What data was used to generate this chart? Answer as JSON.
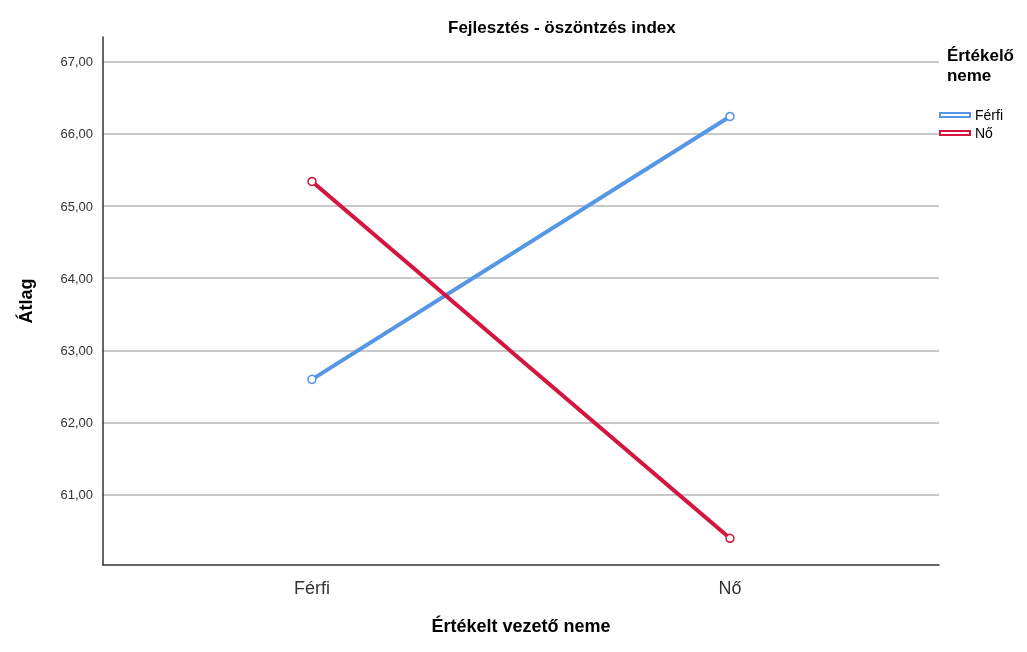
{
  "chart_data": {
    "type": "line",
    "title": "Fejlesztés - öszöntzés index",
    "xlabel": "Értékelt vezető neme",
    "ylabel": "Átlag",
    "legend_title": "Értékelő neme",
    "categories": [
      "Férfi",
      "Nő"
    ],
    "series": [
      {
        "name": "Férfi",
        "color": "#5596e6",
        "values": [
          62.6,
          66.24
        ]
      },
      {
        "name": "Nő",
        "color": "#d3153f",
        "values": [
          65.34,
          60.4
        ]
      }
    ],
    "ylim": [
      60.03,
      67.34
    ],
    "yticks": [
      {
        "value": 61,
        "label": "61,00"
      },
      {
        "value": 62,
        "label": "62,00"
      },
      {
        "value": 63,
        "label": "63,00"
      },
      {
        "value": 64,
        "label": "64,00"
      },
      {
        "value": 65,
        "label": "65,00"
      },
      {
        "value": 66,
        "label": "66,00"
      },
      {
        "value": 67,
        "label": "67,00"
      }
    ],
    "grid": "y",
    "legend": "top right",
    "marker": "circle",
    "line_style": "solid"
  }
}
